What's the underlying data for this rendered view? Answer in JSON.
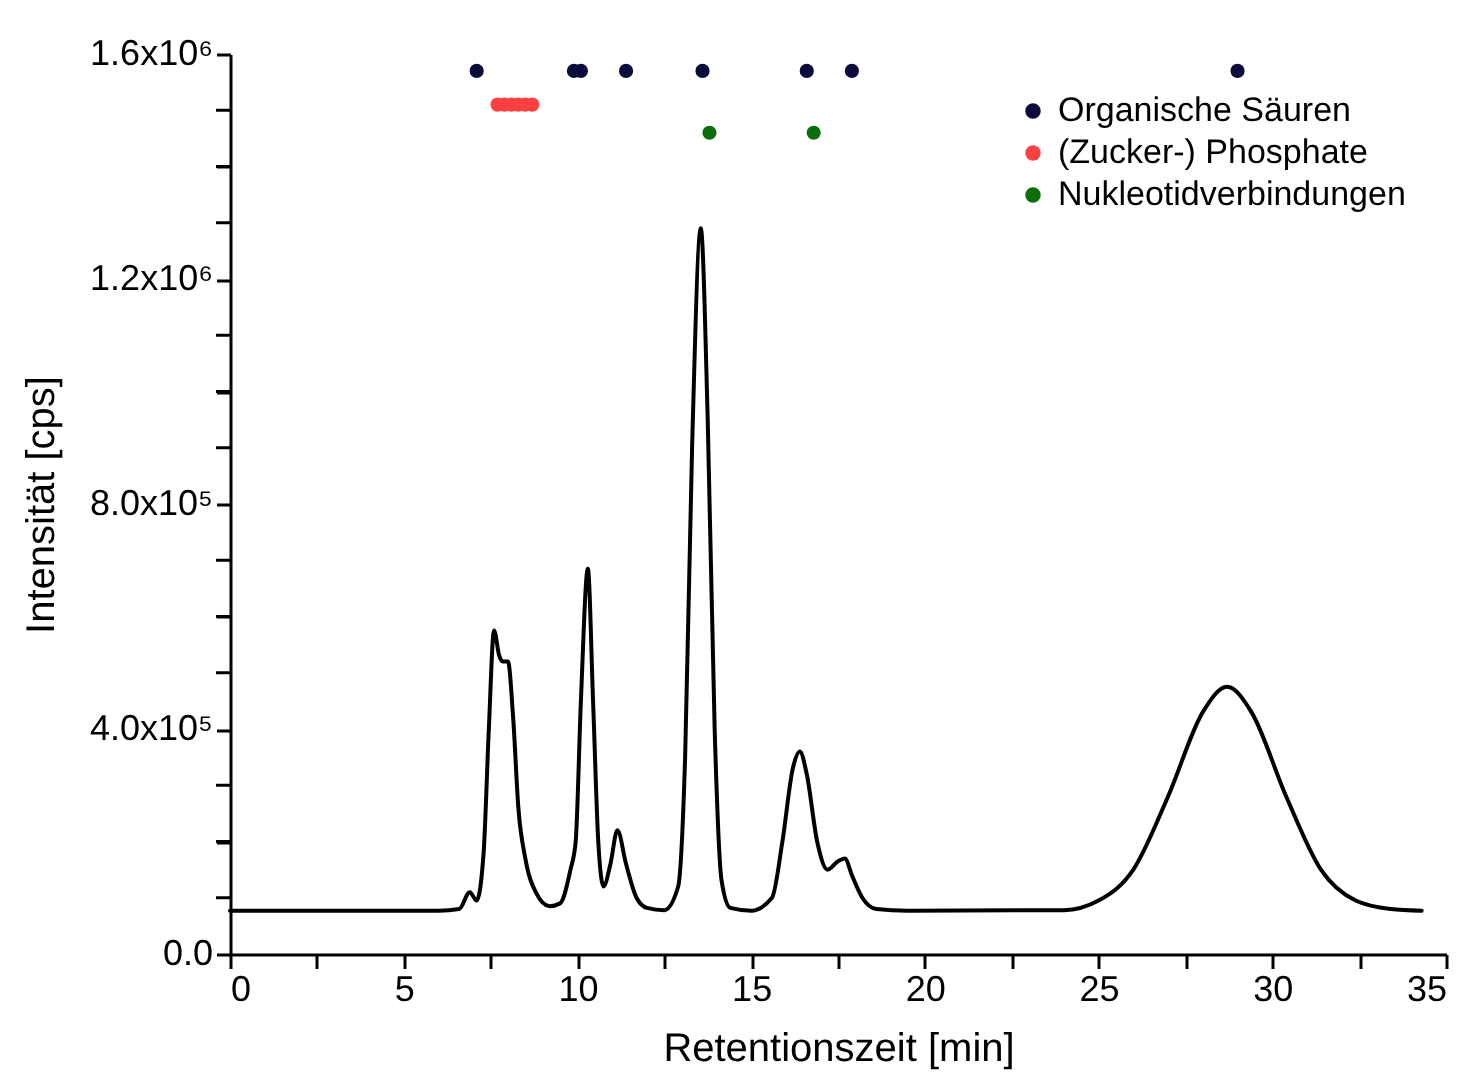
{
  "chart_data": {
    "type": "line",
    "xlabel": "Retentionszeit [min]",
    "ylabel": "Intensität [cps]",
    "xlim": [
      0,
      35
    ],
    "xticks": [
      0,
      {
        "value": 2.5,
        "label": null
      },
      5,
      {
        "value": 7.5,
        "label": null
      },
      10,
      {
        "value": 12.5,
        "label": null
      },
      15,
      {
        "value": 17.5,
        "label": null
      },
      20,
      {
        "value": 22.5,
        "label": null
      },
      25,
      {
        "value": 27.5,
        "label": null
      },
      30,
      {
        "value": 32.5,
        "label": null
      },
      35
    ],
    "ylim": [
      0,
      1600000
    ],
    "yticks": [
      {
        "value": 0,
        "label": "0.0"
      },
      {
        "value": 100000,
        "label": null
      },
      {
        "value": 200000,
        "label": null
      },
      {
        "value": 300000,
        "label": null
      },
      {
        "value": 400000,
        "label": "4.0x10⁵"
      },
      {
        "value": 500000,
        "label": null
      },
      {
        "value": 600000,
        "label": null
      },
      {
        "value": 700000,
        "label": null
      },
      {
        "value": 800000,
        "label": "8.0x10⁵"
      },
      {
        "value": 900000,
        "label": null
      },
      {
        "value": 1000000,
        "label": null
      },
      {
        "value": 1100000,
        "label": null
      },
      {
        "value": 1200000,
        "label": "1.2x10⁶"
      },
      {
        "value": 1300000,
        "label": null
      },
      {
        "value": 1400000,
        "label": null
      },
      {
        "value": 1500000,
        "label": null
      },
      {
        "value": 1600000,
        "label": "1.6x10⁶"
      }
    ],
    "grid": false,
    "legend": "top right",
    "line_style": "solid",
    "marker": "circle",
    "series": [
      {
        "type": "line",
        "marker": "none",
        "color": "#000000",
        "x": [
          0,
          6.0,
          6.6,
          6.9,
          7.1,
          7.3,
          7.45,
          7.6,
          7.75,
          7.85,
          8.0,
          8.15,
          8.3,
          8.5,
          8.8,
          9.2,
          9.5,
          9.8,
          9.95,
          10.1,
          10.3,
          10.45,
          10.6,
          10.75,
          10.95,
          11.15,
          11.4,
          11.7,
          12.0,
          12.5,
          12.9,
          13.1,
          13.3,
          13.55,
          13.75,
          13.95,
          14.15,
          14.4,
          15.0,
          15.6,
          15.9,
          16.2,
          16.4,
          16.6,
          16.9,
          17.2,
          17.5,
          17.7,
          17.9,
          18.2,
          18.6,
          19.5,
          24.0,
          25.0,
          26.0,
          27.0,
          28.0,
          28.7,
          29.4,
          30.4,
          31.4,
          32.4,
          33.4,
          34.3
        ],
        "values": [
          77000,
          77000,
          80000,
          110000,
          95000,
          180000,
          400000,
          575000,
          530000,
          520000,
          520000,
          420000,
          260000,
          170000,
          110000,
          85000,
          90000,
          150000,
          200000,
          450000,
          685000,
          450000,
          200000,
          120000,
          160000,
          220000,
          160000,
          100000,
          82000,
          78000,
          120000,
          350000,
          900000,
          1290000,
          950000,
          400000,
          130000,
          82000,
          77000,
          100000,
          200000,
          330000,
          360000,
          320000,
          200000,
          150000,
          165000,
          170000,
          140000,
          100000,
          80000,
          77000,
          78000,
          95000,
          150000,
          280000,
          430000,
          475000,
          430000,
          280000,
          150000,
          95000,
          80000,
          77000
        ]
      },
      {
        "type": "scatter",
        "name": "Organische Säuren",
        "color": "#0a0a3c",
        "x": [
          7.1,
          9.9,
          10.1,
          11.4,
          13.6,
          16.6,
          17.9,
          29.0
        ],
        "values": [
          1570000,
          1570000,
          1570000,
          1570000,
          1570000,
          1570000,
          1570000,
          1570000
        ]
      },
      {
        "type": "scatter",
        "name": "(Zucker-) Phosphate",
        "color": "#ff4040",
        "x": [
          7.7,
          7.9,
          8.1,
          8.3,
          8.5,
          8.7
        ],
        "values": [
          1510000,
          1510000,
          1510000,
          1510000,
          1510000,
          1510000
        ]
      },
      {
        "type": "scatter",
        "name": "Nukleotidverbindungen",
        "color": "#0a6e0a",
        "x": [
          13.8,
          16.8
        ],
        "values": [
          1460000,
          1460000
        ]
      }
    ]
  }
}
